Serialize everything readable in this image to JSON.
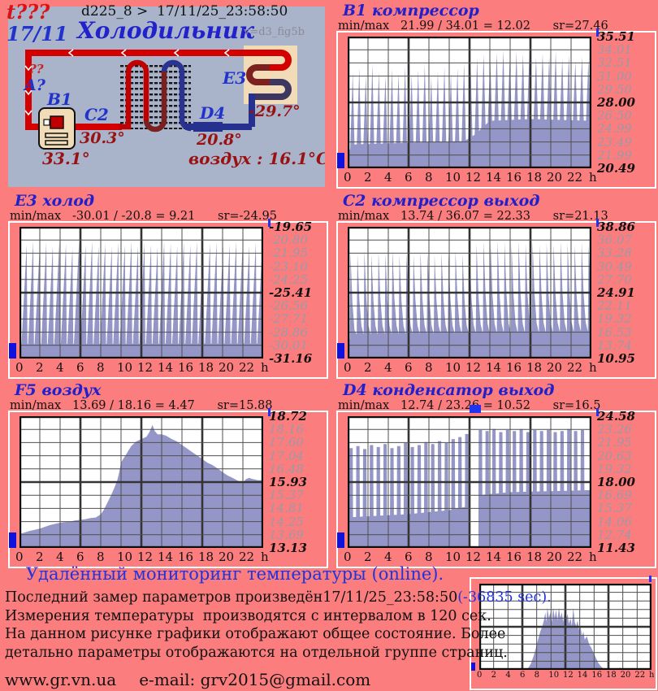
{
  "header": {
    "t_unknown": "t???",
    "day": "17/11",
    "device_line": "d225_8 >  17/11/25_23:58:50",
    "app_title": "Холодильник",
    "version": "v=d3_fig5b"
  },
  "diagram": {
    "q_red": "??",
    "q_blue": "A?",
    "b1_label": "B1",
    "b1_temp": "33.1°",
    "c2_label": "C2",
    "c2_temp": "30.3°",
    "d4_label": "D4",
    "d4_temp": "20.8°",
    "e3_label": "E3",
    "e3_temp": "-29.7°",
    "air_temp": "воздух : 16.1°C"
  },
  "colors": {
    "fill": "#9596c8",
    "grid_thin": "#4f4f4f",
    "grid_thick": "#343434",
    "border": "#0d0d0d",
    "marker_blue": "#1111dd",
    "title_blue": "#2020cc",
    "dark_red": "#991111",
    "page_bg": "#fb7d7d",
    "panel_bg": "#a9b3c9"
  },
  "footer": {
    "heading": "Удалённый мониторинг температуры (online).",
    "line1_pre": "Последний замер параметров произведён",
    "line1_date": "17/11/25_23:58:50",
    "line1_tail": "(-36835 sec).",
    "line2": "Измерения температуры  производятся с интервалом в 120 сек.",
    "line3": "На данном рисунке графики отображают общее состояние. Более",
    "line4": "детально параметры отображаются на отдельной группе страниц.",
    "website": "www.gr.vn.ua",
    "email": "e-mail: grv2015@gmail.com"
  },
  "chart_data": [
    {
      "id": "B1",
      "type": "area",
      "title": "B1 компрессор",
      "stats": "min/max   21.99 / 34.01 = 12.02      sr=27.46",
      "ymax": 35.51,
      "ymin": 20.49,
      "ylabels": [
        "35.51",
        "34.01",
        "32.51",
        "31.00",
        "29.50",
        "28.00",
        "26.50",
        "24.99",
        "23.49",
        "21.99",
        "20.49"
      ],
      "ybold": [
        0,
        5,
        10
      ],
      "xlabels": [
        "0",
        "2",
        "4",
        "6",
        "8",
        "10",
        "12",
        "14",
        "16",
        "18",
        "20",
        "22",
        "h"
      ],
      "series": {
        "type": "cycles",
        "t0": 0.25,
        "period": 0.645,
        "up": 0.38,
        "down": 0.66,
        "peaks": [
          31.4,
          31.9,
          31.1,
          32.3,
          31.5,
          31.0,
          31.8,
          31.3,
          32.1,
          31.2,
          31.7,
          32.3,
          30.9,
          31.5,
          32.0,
          31.2,
          31.9,
          32.5,
          32.2,
          33.1,
          33.5,
          32.9,
          33.7,
          34.0,
          33.3,
          33.8,
          33.5,
          34.0,
          33.1,
          33.6,
          33.2,
          33.8,
          33.0,
          33.4,
          32.7,
          33.2,
          32.9
        ],
        "floor": [
          [
            0,
            22.0
          ],
          [
            0.4,
            23.2
          ],
          [
            6,
            23.4
          ],
          [
            11.5,
            23.6
          ],
          [
            12.5,
            24.3
          ],
          [
            14,
            25.9
          ],
          [
            18,
            26.1
          ],
          [
            24,
            25.9
          ]
        ]
      }
    },
    {
      "id": "E3",
      "type": "area",
      "title": "E3 холод",
      "stats": "min/max   -30.01 / -20.8 = 9.21      sr=-24.95",
      "ymax": -19.65,
      "ymin": -31.16,
      "ylabels": [
        "-19.65",
        "-20.80",
        "-21.95",
        "-23.10",
        "-24.25",
        "-25.41",
        "-26.56",
        "-27.71",
        "-28.86",
        "-30.01",
        "-31.16"
      ],
      "ybold": [
        0,
        5,
        10
      ],
      "xlabels": [
        "0",
        "2",
        "4",
        "6",
        "8",
        "10",
        "12",
        "14",
        "16",
        "18",
        "20",
        "22",
        "h"
      ],
      "series": {
        "type": "cycles",
        "t0": 0.2,
        "period": 0.645,
        "up": 0.78,
        "down": 0.9,
        "peaks": [
          -21.2,
          -20.9,
          -21.4,
          -21.0,
          -21.3,
          -20.9,
          -21.1,
          -21.5,
          -21.0,
          -21.2,
          -20.9,
          -21.3,
          -21.1,
          -21.4,
          -21.0,
          -21.2,
          -20.9,
          -21.3,
          -21.0,
          -21.2,
          -21.4,
          -20.9,
          -21.1,
          -21.3,
          -21.0,
          -21.2,
          -20.9,
          -21.4,
          -21.1,
          -21.0,
          -21.3,
          -21.2,
          -20.9,
          -21.1,
          -21.3,
          -21.0,
          -21.2
        ],
        "floor": [
          [
            0,
            -29.9
          ],
          [
            24,
            -29.85
          ]
        ]
      }
    },
    {
      "id": "C2",
      "type": "area",
      "title": "C2 компрессор выход",
      "stats": "min/max   13.74 / 36.07 = 22.33      sr=21.13",
      "ymax": 38.86,
      "ymin": 10.95,
      "ylabels": [
        "38.86",
        "36.07",
        "33.28",
        "30.49",
        "27.70",
        "24.91",
        "22.11",
        "19.32",
        "16.53",
        "13.74",
        "10.95"
      ],
      "ybold": [
        0,
        5,
        10
      ],
      "xlabels": [
        "0",
        "2",
        "4",
        "6",
        "8",
        "10",
        "12",
        "14",
        "16",
        "18",
        "20",
        "22",
        "h"
      ],
      "series": {
        "type": "cycles",
        "t0": 0.2,
        "period": 0.69,
        "up": 0.1,
        "down": 0.97,
        "decay": [
          [
            0.38,
            0.42
          ],
          [
            0.68,
            0.1
          ]
        ],
        "peaks": [
          33.5,
          33.1,
          33.8,
          33.0,
          33.6,
          33.2,
          34.0,
          32.9,
          33.4,
          33.0,
          33.7,
          33.3,
          32.9,
          33.5,
          33.1,
          33.8,
          33.2,
          34.3,
          35.3,
          35.8,
          35.4,
          36.0,
          35.6,
          35.1,
          35.9,
          35.3,
          35.7,
          35.0,
          35.5,
          35.2,
          35.8,
          35.4,
          35.0,
          35.6,
          35.2
        ],
        "floor": [
          [
            0,
            13.8
          ],
          [
            0.35,
            16.1
          ],
          [
            6,
            16.25
          ],
          [
            12,
            16.35
          ],
          [
            18,
            16.55
          ],
          [
            24,
            16.8
          ]
        ]
      }
    },
    {
      "id": "F5",
      "type": "area",
      "title": "F5 воздух",
      "stats": "min/max   13.69 / 18.16 = 4.47      sr=15.88",
      "ymax": 18.72,
      "ymin": 13.13,
      "ylabels": [
        "18.72",
        "18.16",
        "17.60",
        "17.04",
        "16.48",
        "15.93",
        "15.37",
        "14.81",
        "14.25",
        "13.69",
        "13.13"
      ],
      "ybold": [
        0,
        5,
        10
      ],
      "xlabels": [
        "0",
        "2",
        "4",
        "6",
        "8",
        "10",
        "12",
        "14",
        "16",
        "18",
        "20",
        "22",
        "h"
      ],
      "series": {
        "type": "area",
        "points": [
          [
            0,
            13.72
          ],
          [
            1,
            13.85
          ],
          [
            2,
            13.95
          ],
          [
            3,
            14.1
          ],
          [
            4,
            14.2
          ],
          [
            5,
            14.25
          ],
          [
            5.5,
            14.3
          ],
          [
            6,
            14.32
          ],
          [
            6.5,
            14.35
          ],
          [
            7,
            14.4
          ],
          [
            7.5,
            14.42
          ],
          [
            8,
            14.55
          ],
          [
            8.3,
            14.75
          ],
          [
            8.6,
            15.0
          ],
          [
            9,
            15.35
          ],
          [
            9.3,
            15.65
          ],
          [
            9.6,
            15.95
          ],
          [
            9.8,
            16.3
          ],
          [
            10,
            16.75
          ],
          [
            10.2,
            16.9
          ],
          [
            10.5,
            17.1
          ],
          [
            11,
            17.45
          ],
          [
            11.5,
            17.65
          ],
          [
            12,
            17.75
          ],
          [
            12.5,
            17.85
          ],
          [
            12.8,
            18.05
          ],
          [
            13.1,
            18.35
          ],
          [
            13.3,
            18.1
          ],
          [
            13.6,
            17.95
          ],
          [
            14,
            17.95
          ],
          [
            14.4,
            17.9
          ],
          [
            15,
            17.75
          ],
          [
            15.5,
            17.65
          ],
          [
            16,
            17.5
          ],
          [
            16.5,
            17.35
          ],
          [
            17,
            17.2
          ],
          [
            17.5,
            17.05
          ],
          [
            18,
            16.9
          ],
          [
            18.5,
            16.75
          ],
          [
            19,
            16.65
          ],
          [
            19.5,
            16.5
          ],
          [
            20,
            16.35
          ],
          [
            20.5,
            16.2
          ],
          [
            21,
            16.1
          ],
          [
            21.5,
            15.98
          ],
          [
            22,
            15.9
          ],
          [
            22.3,
            16.05
          ],
          [
            22.6,
            16.1
          ],
          [
            23,
            16.05
          ],
          [
            23.5,
            16.0
          ],
          [
            24,
            16.0
          ]
        ]
      }
    },
    {
      "id": "D4",
      "type": "area",
      "title": "D4 конденсатор выход",
      "stats": "min/max   12.74 / 23.26 = 10.52      sr=16.5",
      "ymax": 24.58,
      "ymin": 11.43,
      "ylabels": [
        "24.58",
        "23.26",
        "21.95",
        "20.63",
        "19.32",
        "18.00",
        "16.69",
        "15.37",
        "14.06",
        "12.74",
        "11.43"
      ],
      "ybold": [
        0,
        5,
        10
      ],
      "xlabels": [
        "0",
        "2",
        "4",
        "6",
        "8",
        "10",
        "12",
        "14",
        "16",
        "18",
        "20",
        "22",
        "h"
      ],
      "series": {
        "type": "cycles",
        "pulse": true,
        "t0": 0.15,
        "period": 0.67,
        "peaks": [
          21.4,
          21.6,
          21.3,
          21.7,
          21.5,
          21.8,
          21.4,
          21.6,
          21.9,
          21.5,
          21.7,
          22.0,
          21.8,
          22.1,
          21.9,
          22.3,
          22.5,
          22.8,
          23.0,
          23.2,
          23.1,
          23.3,
          23.0,
          23.2,
          23.1,
          23.3,
          23.0,
          23.2,
          23.1,
          23.2,
          23.0,
          23.1,
          23.3,
          23.1,
          23.2
        ],
        "floor": [
          [
            0,
            12.9
          ],
          [
            0.35,
            14.5
          ],
          [
            6,
            14.8
          ],
          [
            10,
            15.2
          ],
          [
            11.95,
            15.6
          ],
          [
            12.95,
            16.7
          ],
          [
            16,
            17.0
          ],
          [
            20,
            17.1
          ],
          [
            24,
            17.2
          ]
        ],
        "gaps": [
          [
            12.03,
            12.88
          ]
        ]
      }
    },
    {
      "id": "overview-histogram",
      "type": "area",
      "title": "",
      "stats": "",
      "ymax": 1.08,
      "ymin": 0,
      "ylabels": [],
      "ybold": [],
      "xlabels": [
        "0",
        "2",
        "4",
        "6",
        "8",
        "10",
        "12",
        "14",
        "16",
        "18",
        "20",
        "22",
        "h"
      ],
      "series": {
        "type": "area",
        "points": [
          [
            0,
            0
          ],
          [
            6.4,
            0
          ],
          [
            6.8,
            0.02
          ],
          [
            7.2,
            0.08
          ],
          [
            7.6,
            0.18
          ],
          [
            7.9,
            0.28
          ],
          [
            8.2,
            0.38
          ],
          [
            8.5,
            0.48
          ],
          [
            8.8,
            0.55
          ],
          [
            9,
            0.62
          ],
          [
            9.2,
            0.72
          ],
          [
            9.35,
            0.6
          ],
          [
            9.5,
            0.78
          ],
          [
            9.7,
            0.65
          ],
          [
            9.9,
            0.72
          ],
          [
            10.1,
            0.6
          ],
          [
            10.3,
            0.78
          ],
          [
            10.5,
            0.65
          ],
          [
            10.7,
            0.75
          ],
          [
            10.9,
            0.62
          ],
          [
            11.1,
            0.78
          ],
          [
            11.3,
            0.65
          ],
          [
            11.5,
            0.72
          ],
          [
            11.7,
            0.6
          ],
          [
            11.9,
            0.75
          ],
          [
            12.1,
            0.65
          ],
          [
            12.3,
            0.7
          ],
          [
            12.5,
            0.58
          ],
          [
            12.7,
            0.65
          ],
          [
            12.9,
            0.55
          ],
          [
            13.1,
            0.78
          ],
          [
            13.3,
            0.6
          ],
          [
            13.5,
            0.55
          ],
          [
            13.7,
            0.62
          ],
          [
            13.9,
            0.5
          ],
          [
            14.1,
            0.55
          ],
          [
            14.3,
            0.42
          ],
          [
            14.5,
            0.48
          ],
          [
            14.7,
            0.38
          ],
          [
            15,
            0.42
          ],
          [
            15.3,
            0.32
          ],
          [
            15.6,
            0.28
          ],
          [
            15.9,
            0.22
          ],
          [
            16.2,
            0.16
          ],
          [
            16.5,
            0.1
          ],
          [
            16.8,
            0.06
          ],
          [
            17.1,
            0.03
          ],
          [
            17.5,
            0.01
          ],
          [
            18,
            0
          ],
          [
            19.4,
            0
          ],
          [
            19.6,
            0.03
          ],
          [
            19.8,
            0
          ],
          [
            24,
            0
          ]
        ]
      }
    }
  ]
}
